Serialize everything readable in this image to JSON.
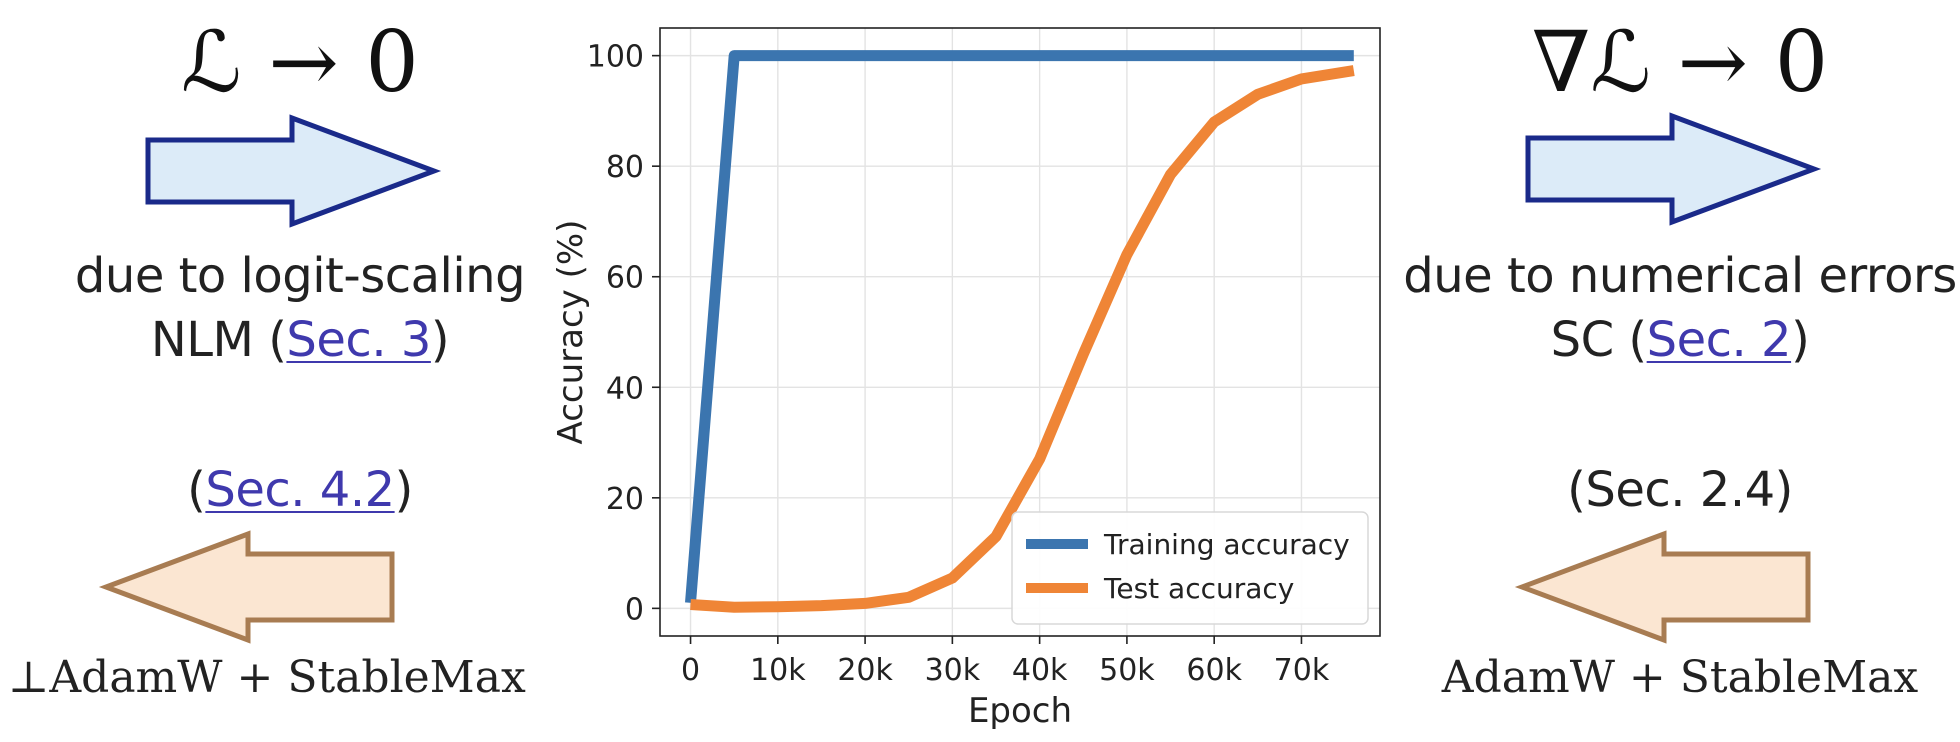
{
  "left": {
    "formula": "ℒ → 0",
    "description": "due to logit-scaling",
    "subdescription_prefix": "NLM (",
    "subdescription_link": "Sec. 3",
    "subdescription_suffix": ")",
    "section_prefix": "(",
    "section_link": "Sec. 4.2",
    "section_suffix": ")",
    "method": "⊥AdamW + StableMax",
    "top_arrow_color": "#dcebf8",
    "top_arrow_stroke": "#1a2a8a",
    "bottom_arrow_color": "#fbe6d2",
    "bottom_arrow_stroke": "#a87c52"
  },
  "right": {
    "formula": "∇ℒ → 0",
    "description": "due to numerical errors",
    "subdescription_prefix": "SC (",
    "subdescription_link": "Sec. 2",
    "subdescription_suffix": ")",
    "section": "(Sec. 2.4)",
    "method": "AdamW + StableMax"
  },
  "chart_data": {
    "type": "line",
    "xlabel": "Epoch",
    "ylabel": "Accuracy (%)",
    "xlim": [
      -3500,
      79000
    ],
    "ylim": [
      -5,
      105
    ],
    "xticks": [
      0,
      10000,
      20000,
      30000,
      40000,
      50000,
      60000,
      70000
    ],
    "xtick_labels": [
      "0",
      "10k",
      "20k",
      "30k",
      "40k",
      "50k",
      "60k",
      "70k"
    ],
    "yticks": [
      0,
      20,
      40,
      60,
      80,
      100
    ],
    "ytick_labels": [
      "0",
      "20",
      "40",
      "60",
      "80",
      "100"
    ],
    "grid": true,
    "legend_position": "bottom-right",
    "series": [
      {
        "name": "Training accuracy",
        "color": "#3b75af",
        "x": [
          0,
          5000,
          10000,
          20000,
          30000,
          40000,
          50000,
          60000,
          70000,
          76000
        ],
        "y": [
          1,
          100,
          100,
          100,
          100,
          100,
          100,
          100,
          100,
          100
        ]
      },
      {
        "name": "Test accuracy",
        "color": "#ef8536",
        "x": [
          0,
          5000,
          10000,
          15000,
          20000,
          25000,
          30000,
          35000,
          40000,
          45000,
          50000,
          55000,
          60000,
          65000,
          70000,
          76000
        ],
        "y": [
          0.7,
          0.2,
          0.3,
          0.5,
          0.9,
          2,
          5.5,
          13,
          27,
          46,
          64,
          78.5,
          88,
          93,
          95.8,
          97.3
        ]
      }
    ]
  }
}
